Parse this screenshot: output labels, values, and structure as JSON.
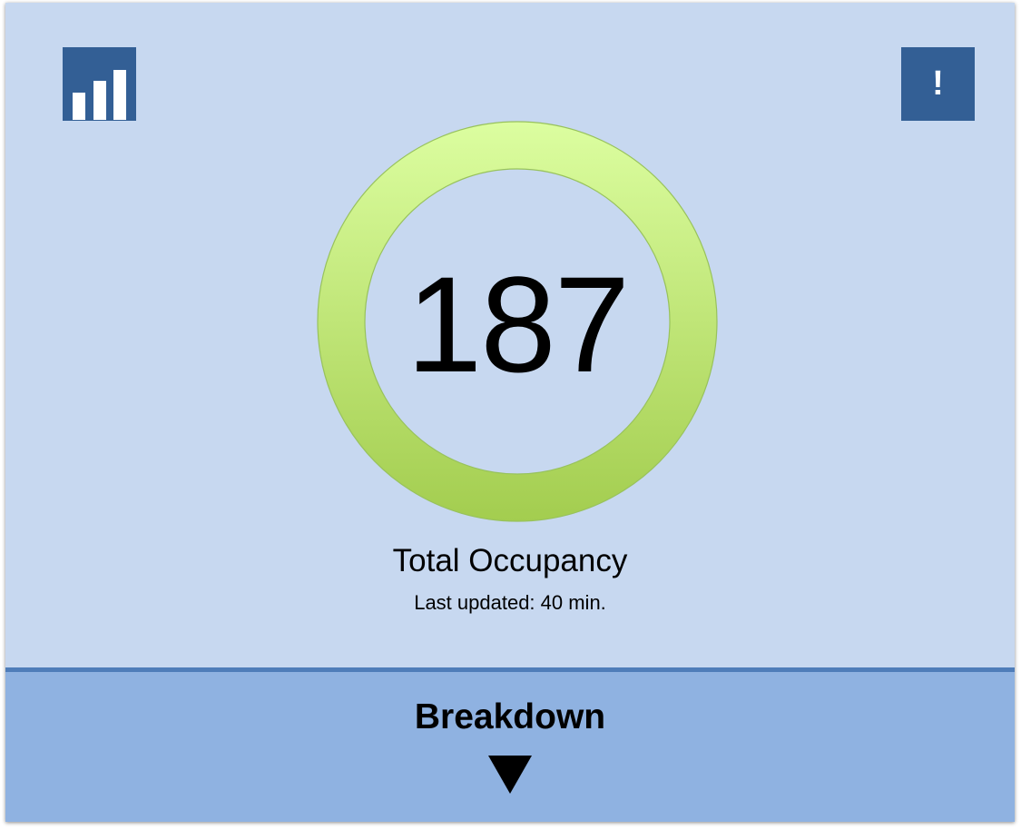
{
  "header": {
    "stats_icon": "bar-chart-icon",
    "alert_icon": "exclamation-icon",
    "alert_glyph": "!"
  },
  "occupancy": {
    "count": "187",
    "title": "Total Occupancy",
    "last_updated": "Last updated: 40 min."
  },
  "breakdown": {
    "label": "Breakdown",
    "arrow_icon": "triangle-down-icon"
  },
  "colors": {
    "background": "#c7d8f0",
    "button": "#335f95",
    "ring_top": "#dcfea0",
    "ring_bottom": "#a3cd4f",
    "breakdown_bg": "#8fb2e1",
    "breakdown_border": "#4f7db9"
  }
}
